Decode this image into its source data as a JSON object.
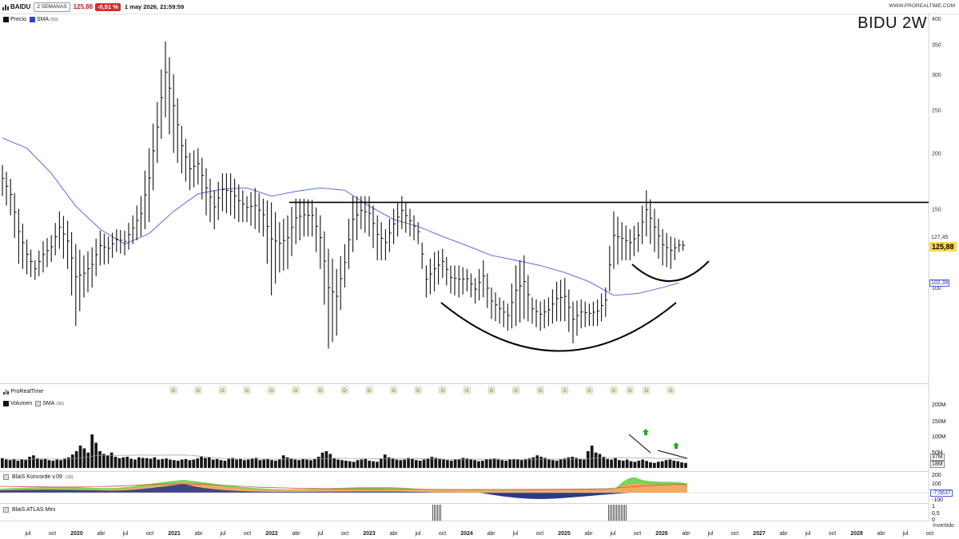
{
  "header": {
    "ticker": "BAIDU",
    "period": "2 SEMANAS",
    "price": "125,88",
    "change": "-0,51 %",
    "datetime": "1 may 2026, 21:59:59",
    "brand": "WWW.PROREALTIME.COM"
  },
  "main_legend": {
    "price_label": "Precio",
    "sma_label": "SMA",
    "sma_param": "(50)"
  },
  "big_title": "BIDU  2W",
  "price_axis": {
    "ticks": [
      "400",
      "350",
      "300",
      "250",
      "200",
      "150",
      "100"
    ],
    "tags": {
      "last": "127,45",
      "price": "125,88",
      "sma": "102,39"
    }
  },
  "prorealtime_label": "ProRealTime",
  "volume_legend": {
    "label": "Volumen",
    "sma_label": "SMA",
    "sma_param": "(30)"
  },
  "volume_axis": {
    "ticks": [
      "200M",
      "150M",
      "100M",
      "50M"
    ],
    "tags": [
      "37M",
      "18M"
    ]
  },
  "koncorde": {
    "label": "BlaiS Koncorde v.09",
    "param": "(15)",
    "ticks": [
      "200",
      "100",
      "-100"
    ],
    "tag": "-7,5637"
  },
  "atlas": {
    "label": "BlaiS ATLAS Mini",
    "ticks": [
      "1",
      "0,5",
      "0"
    ]
  },
  "inverted_label": "Invertido",
  "time_axis": [
    "jul",
    "oct",
    "2020",
    "abr",
    "jul",
    "oct",
    "2021",
    "abr",
    "jul",
    "oct",
    "2022",
    "abr",
    "jul",
    "oct",
    "2023",
    "abr",
    "jul",
    "oct",
    "2024",
    "abr",
    "jul",
    "oct",
    "2025",
    "abr",
    "jul",
    "oct",
    "2026",
    "abr",
    "jul",
    "oct",
    "2027",
    "abr",
    "jul",
    "oct",
    "2028",
    "abr",
    "jul",
    "oct"
  ],
  "event_marker": "G",
  "colors": {
    "price_bars": "#111111",
    "sma": "#4a5be0",
    "change_bg": "#d32f2f",
    "arrows": "#22aa22",
    "koncorde_green": "#66d04a",
    "koncorde_orange": "#f5a860",
    "koncorde_blue": "#2a3a8a"
  },
  "chart_data": {
    "type": "ohlc-bar",
    "symbol": "BIDU",
    "timeframe": "2W",
    "ylim": [
      85,
      400
    ],
    "horizontal_level": 155,
    "price_series": [
      {
        "d": "2019-06",
        "h": 188,
        "l": 160
      },
      {
        "d": "2019-07",
        "h": 175,
        "l": 145
      },
      {
        "d": "2019-08",
        "h": 150,
        "l": 113
      },
      {
        "d": "2019-09",
        "h": 128,
        "l": 107
      },
      {
        "d": "2019-10",
        "h": 115,
        "l": 104
      },
      {
        "d": "2019-11",
        "h": 127,
        "l": 108
      },
      {
        "d": "2019-12",
        "h": 131,
        "l": 114
      },
      {
        "d": "2020-01",
        "h": 148,
        "l": 122
      },
      {
        "d": "2020-02",
        "h": 141,
        "l": 110
      },
      {
        "d": "2020-03",
        "h": 125,
        "l": 82
      },
      {
        "d": "2020-04",
        "h": 118,
        "l": 95
      },
      {
        "d": "2020-05",
        "h": 123,
        "l": 100
      },
      {
        "d": "2020-06",
        "h": 134,
        "l": 112
      },
      {
        "d": "2020-07",
        "h": 130,
        "l": 113
      },
      {
        "d": "2020-08",
        "h": 135,
        "l": 120
      },
      {
        "d": "2020-09",
        "h": 134,
        "l": 118
      },
      {
        "d": "2020-10",
        "h": 145,
        "l": 125
      },
      {
        "d": "2020-11",
        "h": 160,
        "l": 130
      },
      {
        "d": "2020-12",
        "h": 205,
        "l": 140
      },
      {
        "d": "2021-01",
        "h": 260,
        "l": 190
      },
      {
        "d": "2021-02",
        "h": 355,
        "l": 240
      },
      {
        "d": "2021-03",
        "h": 300,
        "l": 200
      },
      {
        "d": "2021-04",
        "h": 230,
        "l": 180
      },
      {
        "d": "2021-05",
        "h": 200,
        "l": 165
      },
      {
        "d": "2021-06",
        "h": 205,
        "l": 170
      },
      {
        "d": "2021-07",
        "h": 185,
        "l": 145
      },
      {
        "d": "2021-08",
        "h": 165,
        "l": 135
      },
      {
        "d": "2021-09",
        "h": 180,
        "l": 148
      },
      {
        "d": "2021-10",
        "h": 180,
        "l": 145
      },
      {
        "d": "2021-11",
        "h": 170,
        "l": 140
      },
      {
        "d": "2021-12",
        "h": 160,
        "l": 140
      },
      {
        "d": "2022-01",
        "h": 167,
        "l": 135
      },
      {
        "d": "2022-02",
        "h": 158,
        "l": 130
      },
      {
        "d": "2022-03",
        "h": 155,
        "l": 96
      },
      {
        "d": "2022-04",
        "h": 140,
        "l": 108
      },
      {
        "d": "2022-05",
        "h": 145,
        "l": 110
      },
      {
        "d": "2022-06",
        "h": 158,
        "l": 125
      },
      {
        "d": "2022-07",
        "h": 158,
        "l": 130
      },
      {
        "d": "2022-08",
        "h": 157,
        "l": 130
      },
      {
        "d": "2022-09",
        "h": 145,
        "l": 110
      },
      {
        "d": "2022-10",
        "h": 122,
        "l": 73
      },
      {
        "d": "2022-11",
        "h": 110,
        "l": 78
      },
      {
        "d": "2022-12",
        "h": 125,
        "l": 100
      },
      {
        "d": "2023-01",
        "h": 160,
        "l": 120
      },
      {
        "d": "2023-02",
        "h": 160,
        "l": 135
      },
      {
        "d": "2023-03",
        "h": 160,
        "l": 130
      },
      {
        "d": "2023-04",
        "h": 145,
        "l": 115
      },
      {
        "d": "2023-05",
        "h": 135,
        "l": 115
      },
      {
        "d": "2023-06",
        "h": 150,
        "l": 125
      },
      {
        "d": "2023-07",
        "h": 160,
        "l": 135
      },
      {
        "d": "2023-08",
        "h": 150,
        "l": 130
      },
      {
        "d": "2023-09",
        "h": 140,
        "l": 125
      },
      {
        "d": "2023-10",
        "h": 112,
        "l": 95
      },
      {
        "d": "2023-11",
        "h": 120,
        "l": 98
      },
      {
        "d": "2023-12",
        "h": 122,
        "l": 105
      },
      {
        "d": "2024-01",
        "h": 112,
        "l": 97
      },
      {
        "d": "2024-02",
        "h": 112,
        "l": 95
      },
      {
        "d": "2024-03",
        "h": 110,
        "l": 98
      },
      {
        "d": "2024-04",
        "h": 105,
        "l": 92
      },
      {
        "d": "2024-05",
        "h": 115,
        "l": 95
      },
      {
        "d": "2024-06",
        "h": 100,
        "l": 85
      },
      {
        "d": "2024-07",
        "h": 95,
        "l": 83
      },
      {
        "d": "2024-08",
        "h": 92,
        "l": 80
      },
      {
        "d": "2024-09",
        "h": 112,
        "l": 82
      },
      {
        "d": "2024-10",
        "h": 118,
        "l": 85
      },
      {
        "d": "2024-11",
        "h": 95,
        "l": 83
      },
      {
        "d": "2024-12",
        "h": 93,
        "l": 80
      },
      {
        "d": "2025-01",
        "h": 95,
        "l": 82
      },
      {
        "d": "2025-02",
        "h": 103,
        "l": 84
      },
      {
        "d": "2025-03",
        "h": 105,
        "l": 84
      },
      {
        "d": "2025-04",
        "h": 93,
        "l": 75
      },
      {
        "d": "2025-05",
        "h": 94,
        "l": 81
      },
      {
        "d": "2025-06",
        "h": 92,
        "l": 82
      },
      {
        "d": "2025-07",
        "h": 94,
        "l": 82
      },
      {
        "d": "2025-08",
        "h": 100,
        "l": 86
      },
      {
        "d": "2025-09",
        "h": 148,
        "l": 110
      },
      {
        "d": "2025-10",
        "h": 140,
        "l": 115
      },
      {
        "d": "2025-11",
        "h": 135,
        "l": 115
      },
      {
        "d": "2025-12",
        "h": 140,
        "l": 120
      },
      {
        "d": "2026-01",
        "h": 165,
        "l": 130
      },
      {
        "d": "2026-02",
        "h": 150,
        "l": 120
      },
      {
        "d": "2026-03",
        "h": 135,
        "l": 112
      },
      {
        "d": "2026-04",
        "h": 130,
        "l": 110
      },
      {
        "d": "2026-05",
        "h": 128,
        "l": 120
      }
    ],
    "sma50": [
      {
        "d": "2019-06",
        "v": 216
      },
      {
        "d": "2019-09",
        "v": 205
      },
      {
        "d": "2019-12",
        "v": 180
      },
      {
        "d": "2020-03",
        "v": 152
      },
      {
        "d": "2020-06",
        "v": 135
      },
      {
        "d": "2020-09",
        "v": 125
      },
      {
        "d": "2020-12",
        "v": 132
      },
      {
        "d": "2021-03",
        "v": 148
      },
      {
        "d": "2021-06",
        "v": 162
      },
      {
        "d": "2021-09",
        "v": 166
      },
      {
        "d": "2021-12",
        "v": 167
      },
      {
        "d": "2022-03",
        "v": 160
      },
      {
        "d": "2022-06",
        "v": 164
      },
      {
        "d": "2022-09",
        "v": 167
      },
      {
        "d": "2022-12",
        "v": 165
      },
      {
        "d": "2023-03",
        "v": 152
      },
      {
        "d": "2023-06",
        "v": 142
      },
      {
        "d": "2023-09",
        "v": 137
      },
      {
        "d": "2023-12",
        "v": 130
      },
      {
        "d": "2024-03",
        "v": 124
      },
      {
        "d": "2024-06",
        "v": 118
      },
      {
        "d": "2024-09",
        "v": 115
      },
      {
        "d": "2024-12",
        "v": 112
      },
      {
        "d": "2025-03",
        "v": 108
      },
      {
        "d": "2025-06",
        "v": 103
      },
      {
        "d": "2025-09",
        "v": 96
      },
      {
        "d": "2025-12",
        "v": 97
      },
      {
        "d": "2026-03",
        "v": 100
      },
      {
        "d": "2026-05",
        "v": 102.39
      }
    ],
    "volume": {
      "unit": "M",
      "ylim": [
        0,
        220
      ],
      "values": [
        35,
        30,
        28,
        32,
        26,
        30,
        28,
        40,
        45,
        35,
        30,
        32,
        28,
        26,
        30,
        28,
        34,
        38,
        48,
        60,
        80,
        70,
        55,
        120,
        90,
        60,
        50,
        45,
        55,
        40,
        35,
        38,
        40,
        33,
        30,
        38,
        36,
        35,
        33,
        38,
        30,
        32,
        34,
        30,
        28,
        26,
        30,
        32,
        28,
        30,
        34,
        40,
        36,
        38,
        30,
        32,
        28,
        26,
        34,
        36,
        30,
        32,
        28,
        30,
        34,
        36,
        28,
        30,
        32,
        28,
        26,
        30,
        45,
        38,
        34,
        30,
        28,
        32,
        30,
        28,
        32,
        40,
        55,
        60,
        50,
        35,
        30,
        28,
        26,
        24,
        22,
        28,
        30,
        32,
        26,
        24,
        22,
        34,
        48,
        38,
        34,
        30,
        28,
        30,
        36,
        32,
        28,
        26,
        30,
        34,
        40,
        36,
        32,
        30,
        28,
        26,
        30,
        32,
        36,
        34,
        30,
        28,
        24,
        26,
        30,
        32,
        34,
        30,
        28,
        26,
        30,
        32,
        30,
        28,
        32,
        34,
        38,
        45,
        40,
        36,
        30,
        28,
        26,
        30,
        34,
        38,
        40,
        36,
        32,
        30,
        60,
        80,
        55,
        50,
        40,
        32,
        30,
        35,
        28,
        26,
        30,
        24,
        22,
        26,
        30,
        25,
        20,
        18,
        22,
        24,
        28,
        30,
        26,
        24,
        20,
        18
      ]
    },
    "koncorde_range": [
      -100,
      200
    ],
    "atlas_range": [
      0,
      1
    ]
  }
}
